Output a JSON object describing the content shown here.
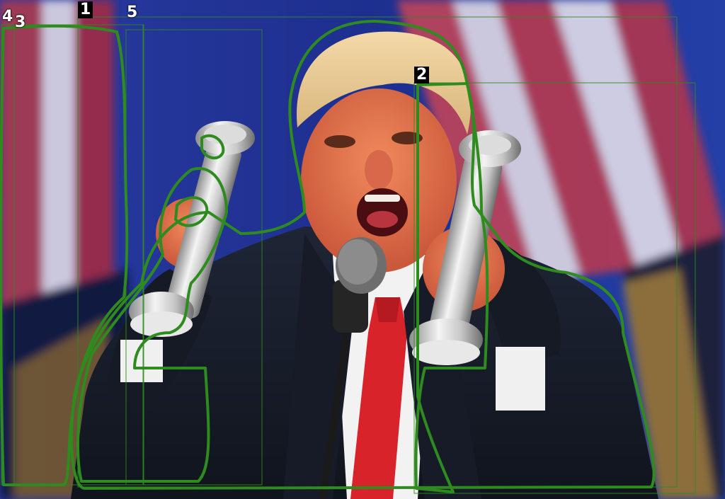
{
  "image": {
    "description_free": true,
    "annotation_color": "#2e8b1e"
  },
  "labels": [
    {
      "id": "label-1",
      "text": "1"
    },
    {
      "id": "label-2",
      "text": "2"
    },
    {
      "id": "label-3",
      "text": "3"
    },
    {
      "id": "label-4",
      "text": "4"
    },
    {
      "id": "label-5",
      "text": "5"
    }
  ]
}
